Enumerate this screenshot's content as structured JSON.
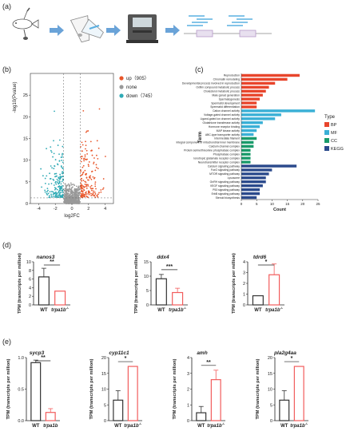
{
  "panels": {
    "a": "(a)",
    "b": "(b)",
    "c": "(c)",
    "d": "(d)",
    "e": "(e)"
  },
  "colors": {
    "red": "#e8562a",
    "cyan": "#2eaab5",
    "grey": "#999999",
    "bp": "#e8452c",
    "mf": "#3ab0d6",
    "cc": "#1a9b6b",
    "kegg": "#2b4a8c",
    "wt": "#333333",
    "mut": "#f25c5c"
  },
  "workflow": {
    "icons": [
      "zebrafish-icon",
      "tube-icon",
      "tube-icon",
      "sequencer-icon",
      "reads-icon"
    ]
  },
  "chart_data": [
    {
      "id": "volcano",
      "type": "scatter",
      "xlabel": "log2FC",
      "ylabel": "-log10(Pvalue)",
      "xticks": [
        -4,
        -2,
        0,
        2,
        4
      ],
      "yticks": [
        0,
        5,
        10,
        15,
        20,
        25
      ],
      "xlim": [
        -5,
        5
      ],
      "ylim": [
        0,
        30
      ],
      "legend": [
        {
          "key": "up",
          "label": "up（905）",
          "color": "#e8562a"
        },
        {
          "key": "none",
          "label": "none",
          "color": "#999999"
        },
        {
          "key": "down",
          "label": "down（745）",
          "color": "#2eaab5"
        }
      ],
      "threshold_x": [
        -1,
        1
      ],
      "threshold_y": 1.3,
      "legend_position": "top-right"
    },
    {
      "id": "enrichment",
      "type": "bar",
      "ylabel": "Term",
      "xlabel": "Count",
      "xticks": [
        0,
        5,
        10,
        15,
        20,
        25
      ],
      "xlim": [
        0,
        25
      ],
      "legend_title": "Type",
      "legend": [
        {
          "key": "BP",
          "color": "#e8452c"
        },
        {
          "key": "MF",
          "color": "#3ab0d6"
        },
        {
          "key": "CC",
          "color": "#1a9b6b"
        },
        {
          "key": "KEGG",
          "color": "#2b4a8c"
        }
      ],
      "terms": [
        {
          "t": "Reproduction",
          "v": 19,
          "g": "BP"
        },
        {
          "t": "Chromatin remodeling",
          "v": 15,
          "g": "BP"
        },
        {
          "t": "Developmental process involved in reproduction",
          "v": 11,
          "g": "BP"
        },
        {
          "t": "Oxfilm compound metabolic process",
          "v": 9,
          "g": "BP"
        },
        {
          "t": "Cholesterol metabolic process",
          "v": 8,
          "g": "BP"
        },
        {
          "t": "Male gonad generation",
          "v": 7,
          "g": "BP"
        },
        {
          "t": "Spermatogenesis",
          "v": 6,
          "g": "BP"
        },
        {
          "t": "Spermatid development",
          "v": 5,
          "g": "BP"
        },
        {
          "t": "Spermatid differentiation",
          "v": 5,
          "g": "BP"
        },
        {
          "t": "Cation channel activity",
          "v": 24,
          "g": "MF"
        },
        {
          "t": "Voltage-gated channel activity",
          "v": 13,
          "g": "MF"
        },
        {
          "t": "Ligand-gated ion channel activity",
          "v": 11,
          "g": "MF"
        },
        {
          "t": "Glutathione transferase activity",
          "v": 7,
          "g": "MF"
        },
        {
          "t": "Hormone receptor binding",
          "v": 6,
          "g": "MF"
        },
        {
          "t": "MAP kinase activity",
          "v": 5,
          "g": "MF"
        },
        {
          "t": "ABC-type transporter activity",
          "v": 4,
          "g": "MF"
        },
        {
          "t": "Intermediate filament",
          "v": 5,
          "g": "CC"
        },
        {
          "t": "Integral component of mitochondrial inner membrane",
          "v": 4,
          "g": "CC"
        },
        {
          "t": "Calcium channel complex",
          "v": 4,
          "g": "CC"
        },
        {
          "t": "Protein serine/threonine phosphatase complex",
          "v": 3,
          "g": "CC"
        },
        {
          "t": "Phosphatase complex",
          "v": 3,
          "g": "CC"
        },
        {
          "t": "Ionotropic glutamate receptor complex",
          "v": 3,
          "g": "CC"
        },
        {
          "t": "Neurotransmitter receptor complex",
          "v": 3,
          "g": "CC"
        },
        {
          "t": "Calcium signaling pathway",
          "v": 18,
          "g": "KEGG"
        },
        {
          "t": "FoxO signaling pathway",
          "v": 10,
          "g": "KEGG"
        },
        {
          "t": "MTOR signaling pathway",
          "v": 9,
          "g": "KEGG"
        },
        {
          "t": "Lysosome",
          "v": 8,
          "g": "KEGG"
        },
        {
          "t": "GnRH signaling pathway",
          "v": 8,
          "g": "KEGG"
        },
        {
          "t": "VEGF signaling pathway",
          "v": 7,
          "g": "KEGG"
        },
        {
          "t": "P53 signaling pathway",
          "v": 6,
          "g": "KEGG"
        },
        {
          "t": "ErbB signaling pathway",
          "v": 6,
          "g": "KEGG"
        },
        {
          "t": "Steroid biosynthesis",
          "v": 5,
          "g": "KEGG"
        }
      ]
    },
    {
      "id": "nanos3",
      "type": "bar",
      "title": "nanos3",
      "ylabel": "TPM (transcripts per million)",
      "categories": [
        "WT",
        "trpa1b"
      ],
      "superscripts": [
        "",
        "-/-"
      ],
      "values": [
        6.5,
        3.2
      ],
      "errors": [
        2.0,
        0
      ],
      "yticks": [
        0,
        2,
        4,
        6,
        8,
        10
      ],
      "ylim": [
        0,
        10
      ],
      "sig": "**"
    },
    {
      "id": "ddx4",
      "type": "bar",
      "title": "ddx4",
      "ylabel": "TPM (transcripts per million)",
      "categories": [
        "WT",
        "trpa1b"
      ],
      "superscripts": [
        "",
        "-/-"
      ],
      "values": [
        9.1,
        4.3
      ],
      "errors": [
        1.5,
        1.5
      ],
      "yticks": [
        0,
        5,
        10,
        15
      ],
      "ylim": [
        0,
        15
      ],
      "sig": "***"
    },
    {
      "id": "tdrd6",
      "type": "bar",
      "title": "tdrd6",
      "ylabel": "TPM (transcripts per million)",
      "categories": [
        "WT",
        "trpa1b"
      ],
      "superscripts": [
        "",
        "-/-"
      ],
      "values": [
        0.85,
        2.8
      ],
      "errors": [
        0,
        1.0
      ],
      "yticks": [
        0,
        1,
        2,
        3,
        4
      ],
      "ylim": [
        0,
        4
      ],
      "sig": "*"
    },
    {
      "id": "sycp3",
      "type": "bar",
      "title": "sycp3",
      "ylabel": "TPM (transcripts per million)",
      "categories": [
        "WT",
        "trpa1b"
      ],
      "superscripts": [
        "",
        ""
      ],
      "values": [
        0.92,
        0.13
      ],
      "errors": [
        0.04,
        0.06
      ],
      "yticks": [
        0.0,
        0.5,
        1.0
      ],
      "ylim": [
        0,
        1.0
      ],
      "sig": "**"
    },
    {
      "id": "cyp11c1",
      "type": "bar",
      "title": "cyp11c1",
      "ylabel": "TPM (transcripts per million)",
      "categories": [
        "WT",
        "trpa1b"
      ],
      "superscripts": [
        "",
        "-/-"
      ],
      "values": [
        6.5,
        17.2
      ],
      "errors": [
        3.0,
        0
      ],
      "yticks": [
        0,
        5,
        10,
        15,
        20
      ],
      "ylim": [
        0,
        20
      ],
      "sig": "*"
    },
    {
      "id": "amh",
      "type": "bar",
      "title": "amh",
      "ylabel": "TPM (transcripts per million)",
      "categories": [
        "WT",
        "trpa1b"
      ],
      "superscripts": [
        "",
        "-/-"
      ],
      "values": [
        0.5,
        2.6
      ],
      "errors": [
        0.4,
        0.6
      ],
      "yticks": [
        0,
        1,
        2,
        3,
        4
      ],
      "ylim": [
        0,
        4
      ],
      "sig": "**"
    },
    {
      "id": "pla2g4aa",
      "type": "bar",
      "title": "pla2g4aa",
      "ylabel": "TPM (transcripts per million)",
      "categories": [
        "WT",
        "trpa1b"
      ],
      "superscripts": [
        "",
        "-/-"
      ],
      "values": [
        6.5,
        17.2
      ],
      "errors": [
        3.0,
        0
      ],
      "yticks": [
        0,
        5,
        10,
        15,
        20
      ],
      "ylim": [
        0,
        20
      ],
      "sig": "*"
    }
  ]
}
